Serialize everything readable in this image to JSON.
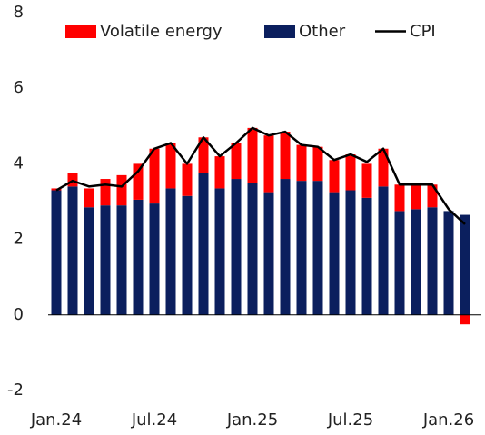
{
  "chart_data": {
    "type": "stacked-bar-line",
    "categories": [
      "Jan.24",
      null,
      null,
      null,
      null,
      null,
      "Jul.24",
      null,
      null,
      null,
      null,
      null,
      "Jan.25",
      null,
      null,
      null,
      null,
      null,
      "Jul.25",
      null,
      null,
      null,
      null,
      null,
      "Jan.26",
      null
    ],
    "series": [
      {
        "name": "Other",
        "color": "#0b1f5e",
        "kind": "bar",
        "values": [
          3.3,
          3.4,
          2.85,
          2.9,
          2.9,
          3.05,
          2.95,
          3.35,
          3.15,
          3.75,
          3.35,
          3.6,
          3.5,
          3.25,
          3.6,
          3.55,
          3.55,
          3.25,
          3.3,
          3.1,
          3.4,
          2.75,
          2.8,
          2.85,
          2.75,
          2.65
        ]
      },
      {
        "name": "Volatile energy",
        "color": "#ff0000",
        "kind": "bar",
        "values": [
          0.05,
          0.35,
          0.5,
          0.7,
          0.8,
          0.95,
          1.45,
          1.2,
          0.85,
          0.95,
          0.85,
          0.95,
          1.45,
          1.5,
          1.25,
          0.95,
          0.9,
          0.85,
          0.95,
          0.9,
          1.0,
          0.7,
          0.65,
          0.6,
          0,
          -0.25
        ]
      },
      {
        "name": "CPI",
        "color": "#000000",
        "kind": "line",
        "values": [
          3.3,
          3.55,
          3.4,
          3.45,
          3.4,
          3.8,
          4.4,
          4.55,
          4.0,
          4.7,
          4.2,
          4.55,
          4.95,
          4.75,
          4.85,
          4.5,
          4.45,
          4.1,
          4.25,
          4.05,
          4.4,
          3.45,
          3.45,
          3.45,
          2.8,
          2.4
        ]
      }
    ],
    "legend_order": [
      1,
      0,
      2
    ],
    "ylim": [
      -2,
      8
    ],
    "yticks": [
      -2,
      0,
      2,
      4,
      6,
      8
    ]
  }
}
